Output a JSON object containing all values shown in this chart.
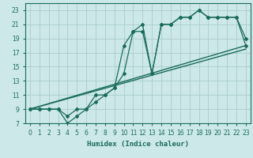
{
  "title": "",
  "xlabel": "Humidex (Indice chaleur)",
  "ylabel": "",
  "bg_color": "#cce8e8",
  "grid_color": "#aacccc",
  "line_color": "#1a6b5a",
  "xlim": [
    -0.5,
    23.5
  ],
  "ylim": [
    7,
    24
  ],
  "xticks": [
    0,
    1,
    2,
    3,
    4,
    5,
    6,
    7,
    8,
    9,
    10,
    11,
    12,
    13,
    14,
    15,
    16,
    17,
    18,
    19,
    20,
    21,
    22,
    23
  ],
  "yticks": [
    7,
    9,
    11,
    13,
    15,
    17,
    19,
    21,
    23
  ],
  "series": [
    {
      "x": [
        0,
        23
      ],
      "y": [
        9,
        18
      ],
      "marker": null,
      "linewidth": 1.0
    },
    {
      "x": [
        0,
        23
      ],
      "y": [
        9,
        17.5
      ],
      "marker": null,
      "linewidth": 1.0
    },
    {
      "x": [
        0,
        1,
        2,
        3,
        4,
        5,
        6,
        7,
        8,
        9,
        10,
        11,
        12,
        13,
        14,
        15,
        16,
        17,
        18,
        19,
        20,
        21,
        22,
        23
      ],
      "y": [
        9,
        9,
        9,
        9,
        7,
        8,
        9,
        10,
        11,
        12,
        18,
        20,
        21,
        14,
        21,
        21,
        22,
        22,
        23,
        22,
        22,
        22,
        22,
        19
      ],
      "marker": "D",
      "linewidth": 0.9
    },
    {
      "x": [
        0,
        1,
        2,
        3,
        4,
        5,
        6,
        7,
        8,
        9,
        10,
        11,
        12,
        13,
        14,
        15,
        16,
        17,
        18,
        19,
        20,
        21,
        22,
        23
      ],
      "y": [
        9,
        9,
        9,
        9,
        8,
        9,
        9,
        11,
        11,
        12,
        14,
        20,
        20,
        14,
        21,
        21,
        22,
        22,
        23,
        22,
        22,
        22,
        22,
        18
      ],
      "marker": "D",
      "linewidth": 0.9
    }
  ]
}
